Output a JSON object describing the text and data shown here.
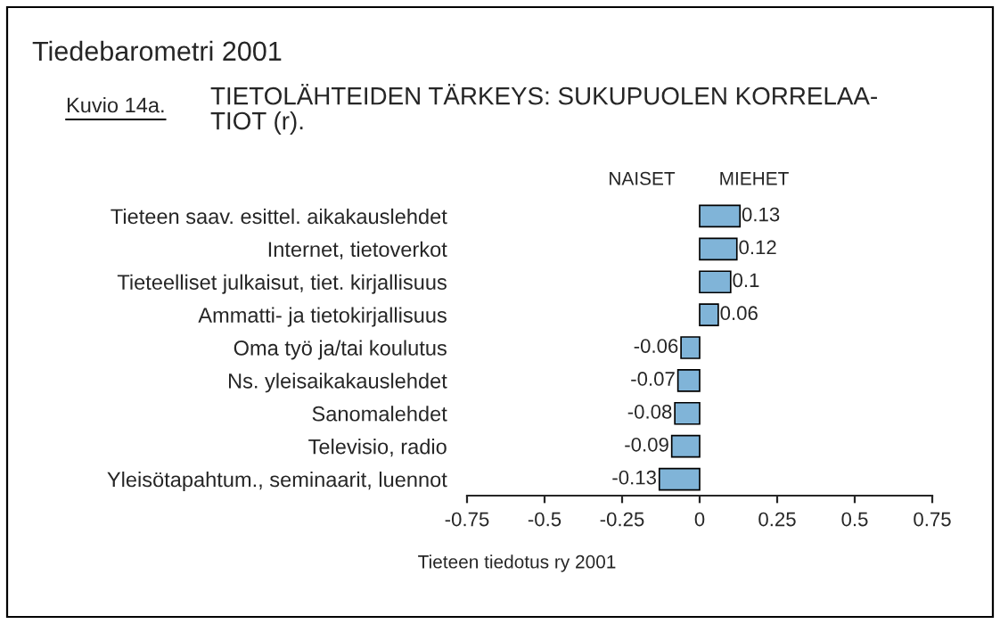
{
  "chart_data": {
    "type": "bar",
    "orientation": "horizontal",
    "title": "Tiedebarometri 2001",
    "subtitle": "TIETOLÄHTEIDEN TÄRKEYS: SUKUPUOLEN KORRELAA-\nTIOT (r).",
    "annotations": [
      "Kuvio 14a.",
      "NAISET",
      "MIEHET",
      "Tieteen tiedotus ry 2001"
    ],
    "categories": [
      "Tieteen saav. esittel. aikakauslehdet",
      "Internet, tietoverkot",
      "Tieteelliset julkaisut, tiet. kirjallisuus",
      "Ammatti- ja tietokirjallisuus",
      "Oma työ ja/tai koulutus",
      "Ns. yleisaikakauslehdet",
      "Sanomalehdet",
      "Televisio, radio",
      "Yleisötapahtum., seminaarit, luennot"
    ],
    "values": [
      0.13,
      0.12,
      0.1,
      0.06,
      -0.06,
      -0.07,
      -0.08,
      -0.09,
      -0.13
    ],
    "color": "#80b4d8",
    "data_labels": true,
    "grid": false,
    "legend": false,
    "xlim": [
      -0.75,
      0.75
    ],
    "xticks": [
      -0.75,
      -0.5,
      -0.25,
      0,
      0.25,
      0.5,
      0.75
    ]
  }
}
